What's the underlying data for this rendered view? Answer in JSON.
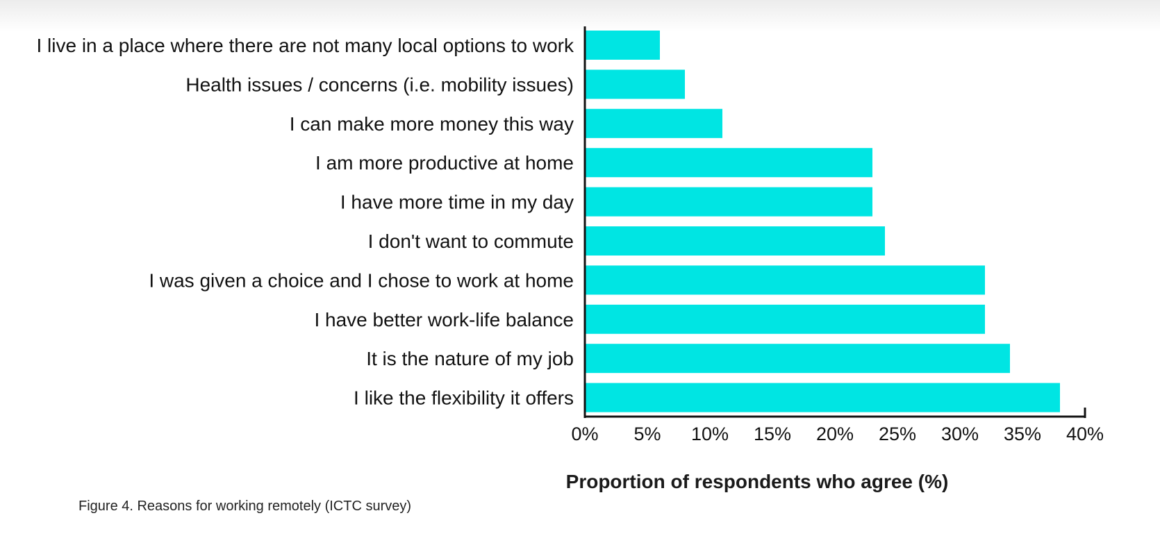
{
  "chart_data": {
    "type": "bar",
    "orientation": "horizontal",
    "categories": [
      "I live in a place where there are not many local options to work",
      "Health issues / concerns (i.e. mobility issues)",
      "I can make more money this way",
      "I am more productive at home",
      "I have more time in my day",
      "I don't want to commute",
      "I was given a choice and I chose to work at home",
      "I have better work-life balance",
      "It is the nature of my job",
      "I like the flexibility it offers"
    ],
    "values": [
      6,
      8,
      11,
      23,
      23,
      24,
      32,
      32,
      34,
      38
    ],
    "xlabel": "Proportion of respondents who agree (%)",
    "xlim": [
      0,
      40
    ],
    "xticks": [
      0,
      5,
      10,
      15,
      20,
      25,
      30,
      35,
      40
    ],
    "xtick_labels": [
      "0%",
      "5%",
      "10%",
      "15%",
      "20%",
      "25%",
      "30%",
      "35%",
      "40%"
    ],
    "bar_color": "#00e5e3",
    "grid": false,
    "legend": "none"
  },
  "caption": "Figure 4. Reasons for working remotely (ICTC survey)"
}
